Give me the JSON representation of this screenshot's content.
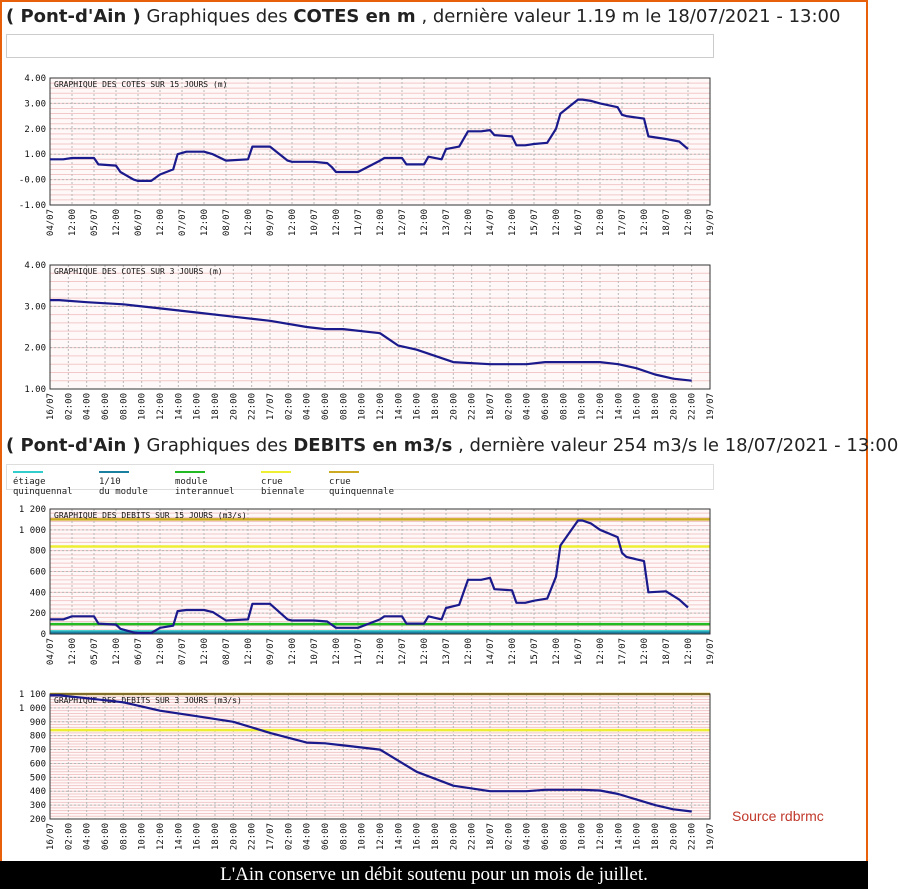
{
  "heading_cotes": {
    "place": "( Pont-d'Ain )",
    "middle": "Graphiques des",
    "measure": "COTES en m",
    "rest": ", dernière valeur 1.19 m le 18/07/2021 - 13:00"
  },
  "heading_debits": {
    "place": "( Pont-d'Ain )",
    "middle": "Graphiques des",
    "measure": "DEBITS en m3/s",
    "rest": ", dernière valeur 254 m3/s le 18/07/2021 - 13:00"
  },
  "legend": [
    {
      "line1": "étiage",
      "line2": "quinquennal",
      "color": "#33cccc"
    },
    {
      "line1": "1/10",
      "line2": "du module",
      "color": "#1a7fa0"
    },
    {
      "line1": "module",
      "line2": "interannuel",
      "color": "#22bb22"
    },
    {
      "line1": "crue",
      "line2": "biennale",
      "color": "#eeee33"
    },
    {
      "line1": "crue",
      "line2": "quinquennale",
      "color": "#ccaa22"
    }
  ],
  "source": "Source rdbrmc",
  "caption": "L'Ain conserve un débit soutenu pour un mois de juillet.",
  "colors": {
    "series": "#1a1a8c",
    "grid_major": "#b8b8b8",
    "grid_minor": "#f2c8c8",
    "plot_bg": "#fff8f8"
  },
  "chart_data": [
    {
      "id": "cotes15",
      "type": "line",
      "title": "GRAPHIQUE DES COTES SUR 15 JOURS (m)",
      "ylim": [
        -1,
        4
      ],
      "yticks": [
        -1,
        0,
        1,
        2,
        3,
        4
      ],
      "ytick_labels": [
        "-1.00",
        "-0.00",
        "1.00",
        "2.00",
        "3.00",
        "4.00"
      ],
      "xlim": [
        0,
        15
      ],
      "xtick_labels": [
        "04/07",
        "12:00",
        "05/07",
        "12:00",
        "06/07",
        "12:00",
        "07/07",
        "12:00",
        "08/07",
        "12:00",
        "09/07",
        "12:00",
        "10/07",
        "12:00",
        "11/07",
        "12:00",
        "12/07",
        "12:00",
        "13/07",
        "12:00",
        "14/07",
        "12:00",
        "15/07",
        "12:00",
        "16/07",
        "12:00",
        "17/07",
        "12:00",
        "18/07",
        "12:00",
        "19/07"
      ],
      "ref_lines": [],
      "series": [
        {
          "x": [
            0,
            0.3,
            0.5,
            1.0,
            1.1,
            1.5,
            1.6,
            1.9,
            2.0,
            2.3,
            2.5,
            2.8,
            2.9,
            3.1,
            3.5,
            3.6,
            3.7,
            4.0,
            4.5,
            4.6,
            5.0,
            5.4,
            5.5,
            5.9,
            6.0,
            6.3,
            6.4,
            6.5,
            7.0,
            7.5,
            7.6,
            8.0,
            8.1,
            8.5,
            8.6,
            8.9,
            9.0,
            9.3,
            9.5,
            9.8,
            10.0,
            10.1,
            10.5,
            10.6,
            10.8,
            11.0,
            11.3,
            11.5,
            11.6,
            12.0,
            12.1,
            12.3,
            12.5,
            12.9,
            13.0,
            13.1,
            13.5,
            13.6,
            14.0,
            14.3,
            14.5
          ],
          "y": [
            0.8,
            0.8,
            0.85,
            0.85,
            0.6,
            0.55,
            0.3,
            0.0,
            -0.05,
            -0.05,
            0.2,
            0.4,
            1.0,
            1.1,
            1.1,
            1.05,
            1.0,
            0.75,
            0.8,
            1.3,
            1.3,
            0.75,
            0.7,
            0.7,
            0.7,
            0.65,
            0.5,
            0.3,
            0.3,
            0.75,
            0.85,
            0.85,
            0.6,
            0.6,
            0.9,
            0.8,
            1.2,
            1.3,
            1.9,
            1.9,
            1.95,
            1.75,
            1.7,
            1.35,
            1.35,
            1.4,
            1.45,
            2.0,
            2.6,
            3.15,
            3.15,
            3.1,
            3.0,
            2.85,
            2.55,
            2.5,
            2.4,
            1.7,
            1.6,
            1.5,
            1.2
          ]
        }
      ]
    },
    {
      "id": "cotes3",
      "type": "line",
      "title": "GRAPHIQUE DES COTES SUR 3 JOURS (m)",
      "ylim": [
        1,
        4
      ],
      "yticks": [
        1,
        2,
        3,
        4
      ],
      "ytick_labels": [
        "1.00",
        "2.00",
        "3.00",
        "4.00"
      ],
      "xlim": [
        0,
        72
      ],
      "xtick_labels": [
        "16/07",
        "02:00",
        "04:00",
        "06:00",
        "08:00",
        "10:00",
        "12:00",
        "14:00",
        "16:00",
        "18:00",
        "20:00",
        "22:00",
        "17/07",
        "02:00",
        "04:00",
        "06:00",
        "08:00",
        "10:00",
        "12:00",
        "14:00",
        "16:00",
        "18:00",
        "20:00",
        "22:00",
        "18/07",
        "02:00",
        "04:00",
        "06:00",
        "08:00",
        "10:00",
        "12:00",
        "14:00",
        "16:00",
        "18:00",
        "20:00",
        "22:00",
        "19/07"
      ],
      "ref_lines": [],
      "series": [
        {
          "x": [
            0,
            1,
            4,
            8,
            12,
            16,
            20,
            24,
            28,
            30,
            32,
            36,
            38,
            40,
            44,
            48,
            52,
            54,
            58,
            60,
            62,
            64,
            66,
            68,
            70
          ],
          "y": [
            3.15,
            3.15,
            3.1,
            3.05,
            2.95,
            2.85,
            2.75,
            2.65,
            2.5,
            2.45,
            2.45,
            2.35,
            2.05,
            1.95,
            1.65,
            1.6,
            1.6,
            1.65,
            1.65,
            1.65,
            1.6,
            1.5,
            1.35,
            1.25,
            1.2
          ]
        }
      ]
    },
    {
      "id": "debits15",
      "type": "line",
      "title": "GRAPHIQUE DES DEBITS SUR 15 JOURS (m3/s)",
      "ylim": [
        0,
        1200
      ],
      "yticks": [
        0,
        200,
        400,
        600,
        800,
        1000,
        1200
      ],
      "ytick_labels": [
        "0",
        "200",
        "400",
        "600",
        "800",
        "1 000",
        "1 200"
      ],
      "xlim": [
        0,
        15
      ],
      "xtick_labels": [
        "04/07",
        "12:00",
        "05/07",
        "12:00",
        "06/07",
        "12:00",
        "07/07",
        "12:00",
        "08/07",
        "12:00",
        "09/07",
        "12:00",
        "10/07",
        "12:00",
        "11/07",
        "12:00",
        "12/07",
        "12:00",
        "13/07",
        "12:00",
        "14/07",
        "12:00",
        "15/07",
        "12:00",
        "16/07",
        "12:00",
        "17/07",
        "12:00",
        "18/07",
        "12:00",
        "19/07"
      ],
      "ref_lines": [
        {
          "y": 25,
          "color": "#33cccc"
        },
        {
          "y": 12,
          "color": "#1a7fa0"
        },
        {
          "y": 95,
          "color": "#22bb22"
        },
        {
          "y": 840,
          "color": "#eeee33"
        },
        {
          "y": 1100,
          "color": "#ccaa22"
        }
      ],
      "series": [
        {
          "x": [
            0,
            0.3,
            0.5,
            1.0,
            1.1,
            1.5,
            1.6,
            1.9,
            2.0,
            2.3,
            2.5,
            2.8,
            2.9,
            3.1,
            3.5,
            3.6,
            3.7,
            4.0,
            4.5,
            4.6,
            5.0,
            5.4,
            5.5,
            5.9,
            6.0,
            6.3,
            6.4,
            6.5,
            7.0,
            7.5,
            7.6,
            8.0,
            8.1,
            8.5,
            8.6,
            8.9,
            9.0,
            9.3,
            9.5,
            9.8,
            10.0,
            10.1,
            10.5,
            10.6,
            10.8,
            11.0,
            11.3,
            11.5,
            11.6,
            12.0,
            12.1,
            12.3,
            12.5,
            12.9,
            13.0,
            13.1,
            13.5,
            13.6,
            14.0,
            14.3,
            14.5
          ],
          "y": [
            140,
            140,
            170,
            170,
            100,
            90,
            50,
            15,
            10,
            10,
            60,
            80,
            220,
            230,
            230,
            220,
            210,
            130,
            140,
            290,
            290,
            140,
            130,
            130,
            130,
            120,
            90,
            60,
            60,
            140,
            170,
            170,
            100,
            100,
            170,
            140,
            250,
            280,
            520,
            520,
            540,
            430,
            420,
            300,
            300,
            320,
            340,
            550,
            850,
            1090,
            1090,
            1060,
            1000,
            930,
            780,
            740,
            700,
            400,
            410,
            330,
            254
          ]
        }
      ]
    },
    {
      "id": "debits3",
      "type": "line",
      "title": "GRAPHIQUE DES DEBITS SUR 3 JOURS (m3/s)",
      "ylim": [
        200,
        1100
      ],
      "yticks": [
        200,
        300,
        400,
        500,
        600,
        700,
        800,
        900,
        1000,
        1100
      ],
      "ytick_labels": [
        "200",
        "300",
        "400",
        "500",
        "600",
        "700",
        "800",
        "900",
        "1 000",
        "1 100"
      ],
      "xlim": [
        0,
        72
      ],
      "xtick_labels": [
        "16/07",
        "02:00",
        "04:00",
        "06:00",
        "08:00",
        "10:00",
        "12:00",
        "14:00",
        "16:00",
        "18:00",
        "20:00",
        "22:00",
        "17/07",
        "02:00",
        "04:00",
        "06:00",
        "08:00",
        "10:00",
        "12:00",
        "14:00",
        "16:00",
        "18:00",
        "20:00",
        "22:00",
        "18/07",
        "02:00",
        "04:00",
        "06:00",
        "08:00",
        "10:00",
        "12:00",
        "14:00",
        "16:00",
        "18:00",
        "20:00",
        "22:00",
        "19/07"
      ],
      "ref_lines": [
        {
          "y": 840,
          "color": "#eeee33"
        },
        {
          "y": 1100,
          "color": "#ccaa22"
        }
      ],
      "series": [
        {
          "x": [
            0,
            1,
            4,
            8,
            12,
            16,
            20,
            24,
            28,
            30,
            32,
            36,
            38,
            40,
            44,
            48,
            52,
            54,
            58,
            60,
            62,
            64,
            66,
            68,
            70
          ],
          "y": [
            1090,
            1090,
            1070,
            1040,
            980,
            940,
            900,
            820,
            750,
            745,
            730,
            700,
            620,
            540,
            440,
            400,
            400,
            410,
            410,
            405,
            380,
            340,
            300,
            270,
            254
          ]
        }
      ]
    }
  ]
}
